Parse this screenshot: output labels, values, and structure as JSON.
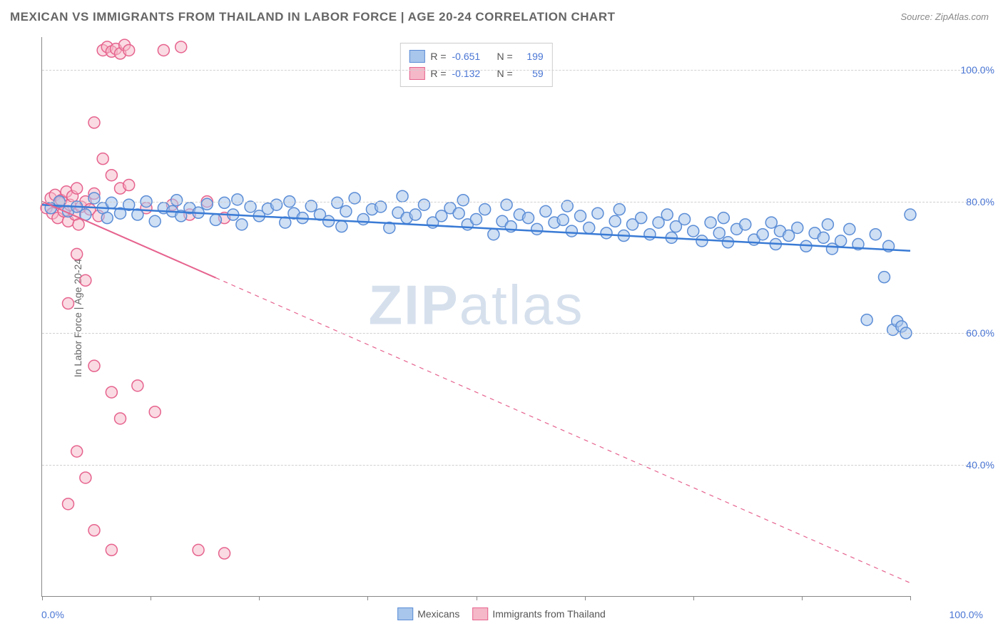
{
  "title": "MEXICAN VS IMMIGRANTS FROM THAILAND IN LABOR FORCE | AGE 20-24 CORRELATION CHART",
  "source": "Source: ZipAtlas.com",
  "y_axis_label": "In Labor Force | Age 20-24",
  "watermark_bold": "ZIP",
  "watermark_light": "atlas",
  "x_min_label": "0.0%",
  "x_max_label": "100.0%",
  "chart": {
    "type": "scatter",
    "xlim": [
      0,
      100
    ],
    "ylim": [
      20,
      105
    ],
    "y_ticks": [
      40,
      60,
      80,
      100
    ],
    "y_tick_labels": [
      "40.0%",
      "60.0%",
      "80.0%",
      "100.0%"
    ],
    "x_ticks": [
      0,
      12.5,
      25,
      37.5,
      50,
      62.5,
      75,
      87.5,
      100
    ],
    "grid_color": "#d0d0d0",
    "background_color": "#ffffff",
    "axis_color": "#888888",
    "marker_radius": 8,
    "marker_stroke_width": 1.5,
    "line_width": 2,
    "series": [
      {
        "name": "Mexicans",
        "fill_color": "#a8c5eb",
        "stroke_color": "#5b8dd6",
        "fill_opacity": 0.55,
        "R": "-0.651",
        "N": "199",
        "trend_line": {
          "x1": 0,
          "y1": 79.5,
          "x2": 100,
          "y2": 72.5,
          "color": "#3a7bd5",
          "dash": "none"
        },
        "points": [
          [
            1,
            79
          ],
          [
            2,
            80
          ],
          [
            3,
            78.5
          ],
          [
            4,
            79.2
          ],
          [
            5,
            78
          ],
          [
            6,
            80.5
          ],
          [
            7,
            79
          ],
          [
            7.5,
            77.5
          ],
          [
            8,
            79.8
          ],
          [
            9,
            78.2
          ],
          [
            10,
            79.5
          ],
          [
            11,
            78
          ],
          [
            12,
            80
          ],
          [
            13,
            77
          ],
          [
            14,
            79
          ],
          [
            15,
            78.5
          ],
          [
            15.5,
            80.2
          ],
          [
            16,
            77.8
          ],
          [
            17,
            79
          ],
          [
            18,
            78.3
          ],
          [
            19,
            79.6
          ],
          [
            20,
            77.2
          ],
          [
            21,
            79.8
          ],
          [
            22,
            78
          ],
          [
            22.5,
            80.3
          ],
          [
            23,
            76.5
          ],
          [
            24,
            79.2
          ],
          [
            25,
            77.8
          ],
          [
            26,
            78.9
          ],
          [
            27,
            79.5
          ],
          [
            28,
            76.8
          ],
          [
            28.5,
            80
          ],
          [
            29,
            78.2
          ],
          [
            30,
            77.5
          ],
          [
            31,
            79.3
          ],
          [
            32,
            78
          ],
          [
            33,
            77
          ],
          [
            34,
            79.8
          ],
          [
            34.5,
            76.2
          ],
          [
            35,
            78.5
          ],
          [
            36,
            80.5
          ],
          [
            37,
            77.3
          ],
          [
            38,
            78.8
          ],
          [
            39,
            79.2
          ],
          [
            40,
            76
          ],
          [
            41,
            78.3
          ],
          [
            41.5,
            80.8
          ],
          [
            42,
            77.5
          ],
          [
            43,
            78
          ],
          [
            44,
            79.5
          ],
          [
            45,
            76.8
          ],
          [
            46,
            77.8
          ],
          [
            47,
            79
          ],
          [
            48,
            78.2
          ],
          [
            48.5,
            80.2
          ],
          [
            49,
            76.5
          ],
          [
            50,
            77.3
          ],
          [
            51,
            78.8
          ],
          [
            52,
            75
          ],
          [
            53,
            77
          ],
          [
            53.5,
            79.5
          ],
          [
            54,
            76.2
          ],
          [
            55,
            78
          ],
          [
            56,
            77.5
          ],
          [
            57,
            75.8
          ],
          [
            58,
            78.5
          ],
          [
            59,
            76.8
          ],
          [
            60,
            77.2
          ],
          [
            60.5,
            79.3
          ],
          [
            61,
            75.5
          ],
          [
            62,
            77.8
          ],
          [
            63,
            76
          ],
          [
            64,
            78.2
          ],
          [
            65,
            75.2
          ],
          [
            66,
            77
          ],
          [
            66.5,
            78.8
          ],
          [
            67,
            74.8
          ],
          [
            68,
            76.5
          ],
          [
            69,
            77.5
          ],
          [
            70,
            75
          ],
          [
            71,
            76.8
          ],
          [
            72,
            78
          ],
          [
            72.5,
            74.5
          ],
          [
            73,
            76.2
          ],
          [
            74,
            77.3
          ],
          [
            75,
            75.5
          ],
          [
            76,
            74
          ],
          [
            77,
            76.8
          ],
          [
            78,
            75.2
          ],
          [
            78.5,
            77.5
          ],
          [
            79,
            73.8
          ],
          [
            80,
            75.8
          ],
          [
            81,
            76.5
          ],
          [
            82,
            74.2
          ],
          [
            83,
            75
          ],
          [
            84,
            76.8
          ],
          [
            84.5,
            73.5
          ],
          [
            85,
            75.5
          ],
          [
            86,
            74.8
          ],
          [
            87,
            76
          ],
          [
            88,
            73.2
          ],
          [
            89,
            75.2
          ],
          [
            90,
            74.5
          ],
          [
            90.5,
            76.5
          ],
          [
            91,
            72.8
          ],
          [
            92,
            74
          ],
          [
            93,
            75.8
          ],
          [
            94,
            73.5
          ],
          [
            95,
            62
          ],
          [
            96,
            75
          ],
          [
            97,
            68.5
          ],
          [
            97.5,
            73.2
          ],
          [
            98,
            60.5
          ],
          [
            98.5,
            61.8
          ],
          [
            99,
            61
          ],
          [
            99.5,
            60
          ],
          [
            100,
            78
          ]
        ]
      },
      {
        "name": "Immigrants from Thailand",
        "fill_color": "#f5b8c8",
        "stroke_color": "#e6638e",
        "fill_opacity": 0.5,
        "R": "-0.132",
        "N": "59",
        "trend_line": {
          "x1": 0,
          "y1": 80,
          "x2": 100,
          "y2": 22,
          "color": "#e6638e",
          "dash_solid_until": 20
        },
        "points": [
          [
            0.5,
            79
          ],
          [
            1,
            80.5
          ],
          [
            1.2,
            78.2
          ],
          [
            1.5,
            81
          ],
          [
            1.8,
            77.5
          ],
          [
            2,
            79.8
          ],
          [
            2.2,
            80.2
          ],
          [
            2.5,
            78.5
          ],
          [
            2.8,
            81.5
          ],
          [
            3,
            77
          ],
          [
            3.2,
            79.5
          ],
          [
            3.5,
            80.8
          ],
          [
            3.8,
            78
          ],
          [
            4,
            82
          ],
          [
            4.2,
            76.5
          ],
          [
            4.5,
            79.2
          ],
          [
            5,
            80
          ],
          [
            5.5,
            78.8
          ],
          [
            6,
            81.2
          ],
          [
            6.5,
            77.8
          ],
          [
            7,
            103
          ],
          [
            7.5,
            103.5
          ],
          [
            8,
            102.8
          ],
          [
            8.5,
            103.2
          ],
          [
            9,
            102.5
          ],
          [
            9.5,
            103.8
          ],
          [
            10,
            103
          ],
          [
            6,
            92
          ],
          [
            7,
            86.5
          ],
          [
            8,
            84
          ],
          [
            9,
            82
          ],
          [
            4,
            72
          ],
          [
            5,
            68
          ],
          [
            3,
            64.5
          ],
          [
            6,
            55
          ],
          [
            8,
            51
          ],
          [
            9,
            47
          ],
          [
            4,
            42
          ],
          [
            5,
            38
          ],
          [
            3,
            34
          ],
          [
            6,
            30
          ],
          [
            8,
            27
          ],
          [
            15,
            79.5
          ],
          [
            17,
            78
          ],
          [
            19,
            80
          ],
          [
            21,
            77.5
          ],
          [
            14,
            103
          ],
          [
            16,
            103.5
          ],
          [
            10,
            82.5
          ],
          [
            12,
            79
          ],
          [
            11,
            52
          ],
          [
            13,
            48
          ],
          [
            18,
            27
          ],
          [
            21,
            26.5
          ]
        ]
      }
    ]
  },
  "legend_top": [
    {
      "swatch_fill": "#a8c5eb",
      "swatch_stroke": "#5b8dd6",
      "r_label": "R =",
      "r_val": "-0.651",
      "n_label": "N =",
      "n_val": "199"
    },
    {
      "swatch_fill": "#f5b8c8",
      "swatch_stroke": "#e6638e",
      "r_label": "R =",
      "r_val": "-0.132",
      "n_label": "N =",
      "n_val": "59"
    }
  ],
  "legend_bottom": [
    {
      "swatch_fill": "#a8c5eb",
      "swatch_stroke": "#5b8dd6",
      "label": "Mexicans"
    },
    {
      "swatch_fill": "#f5b8c8",
      "swatch_stroke": "#e6638e",
      "label": "Immigrants from Thailand"
    }
  ]
}
